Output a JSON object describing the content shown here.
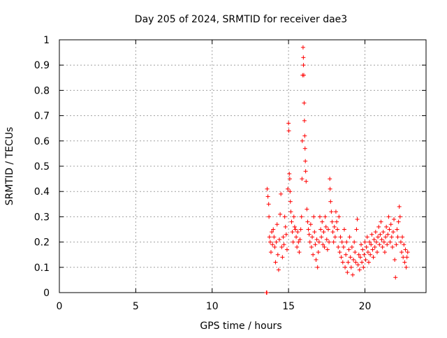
{
  "chart_data": {
    "type": "scatter",
    "title": "Day 205 of 2024, SRMTID for receiver dae3",
    "xlabel": "GPS time / hours",
    "ylabel": "SRMTID / TECUs",
    "xlim": [
      0,
      24
    ],
    "ylim": [
      0,
      1
    ],
    "x_ticks": [
      0,
      5,
      10,
      15,
      20
    ],
    "x_tick_labels": [
      "0",
      "5",
      "10",
      "15",
      "20"
    ],
    "y_ticks": [
      0,
      0.1,
      0.2,
      0.3,
      0.4,
      0.5,
      0.6,
      0.7,
      0.8,
      0.9,
      1
    ],
    "y_tick_labels": [
      "0",
      "0.1",
      "0.2",
      "0.3",
      "0.4",
      "0.5",
      "0.6",
      "0.7",
      "0.8",
      "0.9",
      "1"
    ],
    "grid": true,
    "marker": "+",
    "series": [
      {
        "name": "SRMTID",
        "color": "#ff0000",
        "points": [
          [
            13.55,
            0.0
          ],
          [
            13.58,
            0.0
          ],
          [
            13.6,
            0.41
          ],
          [
            13.65,
            0.38
          ],
          [
            13.7,
            0.35
          ],
          [
            13.72,
            0.3
          ],
          [
            13.75,
            0.22
          ],
          [
            13.8,
            0.2
          ],
          [
            13.85,
            0.16
          ],
          [
            13.9,
            0.24
          ],
          [
            13.95,
            0.19
          ],
          [
            14.0,
            0.25
          ],
          [
            14.05,
            0.22
          ],
          [
            14.1,
            0.18
          ],
          [
            14.15,
            0.12
          ],
          [
            14.2,
            0.2
          ],
          [
            14.25,
            0.27
          ],
          [
            14.3,
            0.15
          ],
          [
            14.35,
            0.09
          ],
          [
            14.4,
            0.21
          ],
          [
            14.45,
            0.31
          ],
          [
            14.5,
            0.39
          ],
          [
            14.55,
            0.18
          ],
          [
            14.6,
            0.14
          ],
          [
            14.65,
            0.22
          ],
          [
            14.7,
            0.19
          ],
          [
            14.75,
            0.3
          ],
          [
            14.8,
            0.26
          ],
          [
            14.85,
            0.23
          ],
          [
            14.9,
            0.17
          ],
          [
            14.95,
            0.41
          ],
          [
            15.0,
            0.67
          ],
          [
            15.02,
            0.64
          ],
          [
            15.05,
            0.47
          ],
          [
            15.08,
            0.45
          ],
          [
            15.1,
            0.4
          ],
          [
            15.12,
            0.36
          ],
          [
            15.15,
            0.32
          ],
          [
            15.2,
            0.28
          ],
          [
            15.25,
            0.24
          ],
          [
            15.3,
            0.2
          ],
          [
            15.35,
            0.3
          ],
          [
            15.4,
            0.26
          ],
          [
            15.45,
            0.25
          ],
          [
            15.5,
            0.22
          ],
          [
            15.55,
            0.18
          ],
          [
            15.6,
            0.24
          ],
          [
            15.65,
            0.2
          ],
          [
            15.7,
            0.16
          ],
          [
            15.75,
            0.21
          ],
          [
            15.8,
            0.25
          ],
          [
            15.85,
            0.3
          ],
          [
            15.88,
            0.45
          ],
          [
            15.9,
            0.6
          ],
          [
            15.92,
            0.86
          ],
          [
            15.95,
            0.97
          ],
          [
            15.97,
            0.93
          ],
          [
            15.98,
            0.9
          ],
          [
            16.0,
            0.86
          ],
          [
            16.02,
            0.75
          ],
          [
            16.04,
            0.68
          ],
          [
            16.06,
            0.62
          ],
          [
            16.08,
            0.57
          ],
          [
            16.1,
            0.52
          ],
          [
            16.12,
            0.48
          ],
          [
            16.15,
            0.44
          ],
          [
            16.2,
            0.33
          ],
          [
            16.25,
            0.28
          ],
          [
            16.3,
            0.25
          ],
          [
            16.35,
            0.23
          ],
          [
            16.4,
            0.2
          ],
          [
            16.45,
            0.27
          ],
          [
            16.5,
            0.18
          ],
          [
            16.55,
            0.22
          ],
          [
            16.6,
            0.15
          ],
          [
            16.65,
            0.3
          ],
          [
            16.7,
            0.24
          ],
          [
            16.75,
            0.19
          ],
          [
            16.8,
            0.13
          ],
          [
            16.85,
            0.21
          ],
          [
            16.9,
            0.1
          ],
          [
            16.95,
            0.16
          ],
          [
            17.0,
            0.2
          ],
          [
            17.05,
            0.3
          ],
          [
            17.1,
            0.25
          ],
          [
            17.15,
            0.22
          ],
          [
            17.2,
            0.28
          ],
          [
            17.25,
            0.19
          ],
          [
            17.3,
            0.24
          ],
          [
            17.35,
            0.18
          ],
          [
            17.4,
            0.3
          ],
          [
            17.45,
            0.26
          ],
          [
            17.5,
            0.21
          ],
          [
            17.55,
            0.17
          ],
          [
            17.6,
            0.25
          ],
          [
            17.65,
            0.2
          ],
          [
            17.7,
            0.45
          ],
          [
            17.72,
            0.41
          ],
          [
            17.75,
            0.36
          ],
          [
            17.8,
            0.32
          ],
          [
            17.85,
            0.28
          ],
          [
            17.9,
            0.24
          ],
          [
            17.95,
            0.2
          ],
          [
            18.0,
            0.26
          ],
          [
            18.05,
            0.22
          ],
          [
            18.1,
            0.32
          ],
          [
            18.15,
            0.28
          ],
          [
            18.2,
            0.25
          ],
          [
            18.25,
            0.18
          ],
          [
            18.3,
            0.3
          ],
          [
            18.35,
            0.16
          ],
          [
            18.4,
            0.22
          ],
          [
            18.45,
            0.14
          ],
          [
            18.5,
            0.2
          ],
          [
            18.55,
            0.12
          ],
          [
            18.6,
            0.18
          ],
          [
            18.65,
            0.25
          ],
          [
            18.7,
            0.1
          ],
          [
            18.75,
            0.15
          ],
          [
            18.8,
            0.2
          ],
          [
            18.85,
            0.08
          ],
          [
            18.9,
            0.12
          ],
          [
            18.95,
            0.17
          ],
          [
            19.0,
            0.22
          ],
          [
            19.05,
            0.14
          ],
          [
            19.1,
            0.1
          ],
          [
            19.15,
            0.18
          ],
          [
            19.2,
            0.07
          ],
          [
            19.25,
            0.13
          ],
          [
            19.3,
            0.2
          ],
          [
            19.35,
            0.16
          ],
          [
            19.4,
            0.12
          ],
          [
            19.45,
            0.25
          ],
          [
            19.5,
            0.29
          ],
          [
            19.55,
            0.11
          ],
          [
            19.6,
            0.15
          ],
          [
            19.65,
            0.09
          ],
          [
            19.7,
            0.14
          ],
          [
            19.75,
            0.19
          ],
          [
            19.8,
            0.12
          ],
          [
            19.85,
            0.17
          ],
          [
            19.9,
            0.1
          ],
          [
            19.95,
            0.15
          ],
          [
            20.0,
            0.2
          ],
          [
            20.05,
            0.13
          ],
          [
            20.1,
            0.18
          ],
          [
            20.15,
            0.22
          ],
          [
            20.2,
            0.16
          ],
          [
            20.25,
            0.12
          ],
          [
            20.3,
            0.2
          ],
          [
            20.35,
            0.15
          ],
          [
            20.4,
            0.19
          ],
          [
            20.45,
            0.23
          ],
          [
            20.5,
            0.17
          ],
          [
            20.55,
            0.14
          ],
          [
            20.6,
            0.21
          ],
          [
            20.65,
            0.18
          ],
          [
            20.7,
            0.24
          ],
          [
            20.75,
            0.2
          ],
          [
            20.8,
            0.16
          ],
          [
            20.85,
            0.22
          ],
          [
            20.9,
            0.26
          ],
          [
            20.95,
            0.19
          ],
          [
            21.0,
            0.23
          ],
          [
            21.05,
            0.28
          ],
          [
            21.1,
            0.21
          ],
          [
            21.15,
            0.18
          ],
          [
            21.2,
            0.24
          ],
          [
            21.25,
            0.2
          ],
          [
            21.3,
            0.16
          ],
          [
            21.35,
            0.22
          ],
          [
            21.4,
            0.26
          ],
          [
            21.45,
            0.19
          ],
          [
            21.5,
            0.23
          ],
          [
            21.55,
            0.3
          ],
          [
            21.6,
            0.25
          ],
          [
            21.65,
            0.2
          ],
          [
            21.7,
            0.27
          ],
          [
            21.75,
            0.22
          ],
          [
            21.8,
            0.18
          ],
          [
            21.85,
            0.24
          ],
          [
            21.9,
            0.29
          ],
          [
            21.95,
            0.13
          ],
          [
            22.0,
            0.06
          ],
          [
            22.05,
            0.19
          ],
          [
            22.1,
            0.25
          ],
          [
            22.15,
            0.22
          ],
          [
            22.2,
            0.28
          ],
          [
            22.25,
            0.34
          ],
          [
            22.3,
            0.3
          ],
          [
            22.35,
            0.2
          ],
          [
            22.4,
            0.16
          ],
          [
            22.45,
            0.22
          ],
          [
            22.5,
            0.14
          ],
          [
            22.55,
            0.19
          ],
          [
            22.6,
            0.12
          ],
          [
            22.65,
            0.17
          ],
          [
            22.7,
            0.1
          ],
          [
            22.75,
            0.14
          ],
          [
            22.8,
            0.16
          ]
        ]
      }
    ]
  }
}
